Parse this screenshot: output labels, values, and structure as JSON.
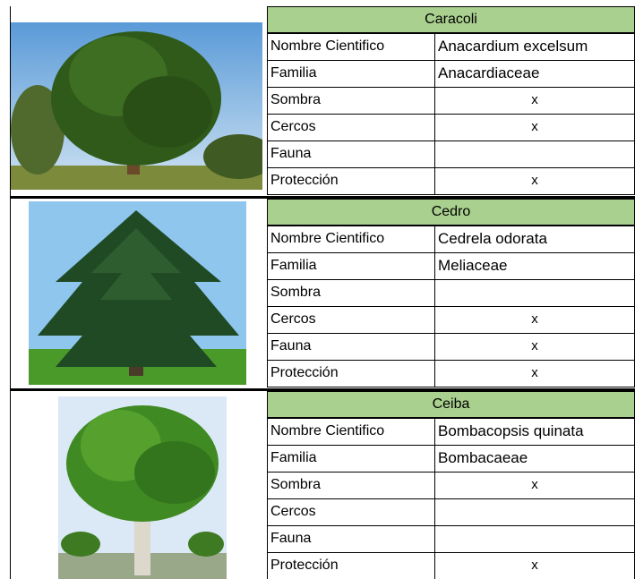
{
  "blocks": [
    {
      "name": "Caracoli",
      "rows": [
        {
          "label": "Nombre Cientifico",
          "value": "Anacardium excelsum"
        },
        {
          "label": "Familia",
          "value": "Anacardiaceae"
        },
        {
          "label": "Sombra",
          "value": "x"
        },
        {
          "label": "Cercos",
          "value": "x"
        },
        {
          "label": "Fauna",
          "value": null
        },
        {
          "label": "Protección",
          "value": "x"
        }
      ]
    },
    {
      "name": "Cedro",
      "rows": [
        {
          "label": "Nombre Cientifico",
          "value": "Cedrela odorata"
        },
        {
          "label": "Familia",
          "value": "Meliaceae"
        },
        {
          "label": "Sombra",
          "value": null
        },
        {
          "label": "Cercos",
          "value": "x"
        },
        {
          "label": "Fauna",
          "value": "x"
        },
        {
          "label": "Protección",
          "value": "x"
        }
      ]
    },
    {
      "name": "Ceiba",
      "rows": [
        {
          "label": "Nombre Cientifico",
          "value": "Bombacopsis quinata"
        },
        {
          "label": "Familia",
          "value": "Bombacaeae"
        },
        {
          "label": "Sombra",
          "value": "x"
        },
        {
          "label": "Cercos",
          "value": null
        },
        {
          "label": "Fauna",
          "value": null
        },
        {
          "label": "Protección",
          "value": "x"
        }
      ]
    }
  ]
}
